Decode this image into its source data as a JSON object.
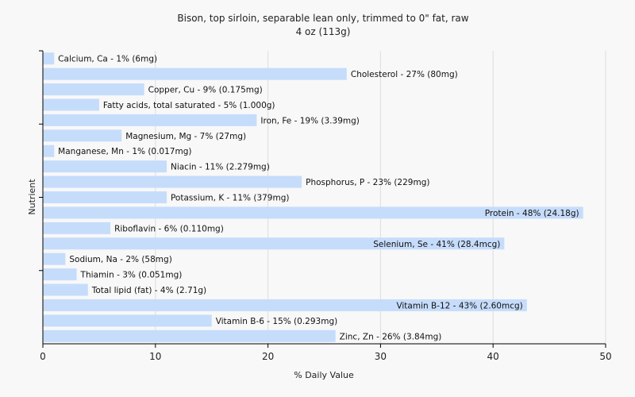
{
  "chart_data": {
    "type": "bar",
    "orientation": "horizontal",
    "title": "Bison, top sirloin, separable lean only, trimmed to 0\" fat, raw",
    "subtitle": "4 oz (113g)",
    "xlabel": "% Daily Value",
    "ylabel": "Nutrient",
    "xlim": [
      0,
      50
    ],
    "xticks": [
      "0",
      "10",
      "20",
      "30",
      "40",
      "50"
    ],
    "grid": true,
    "bar_color": "#c6dcfb",
    "categories": [
      "Calcium, Ca",
      "Cholesterol",
      "Copper, Cu",
      "Fatty acids, total saturated",
      "Iron, Fe",
      "Magnesium, Mg",
      "Manganese, Mn",
      "Niacin",
      "Phosphorus, P",
      "Potassium, K",
      "Protein",
      "Riboflavin",
      "Selenium, Se",
      "Sodium, Na",
      "Thiamin",
      "Total lipid (fat)",
      "Vitamin B-12",
      "Vitamin B-6",
      "Zinc, Zn"
    ],
    "values": [
      1,
      27,
      9,
      5,
      19,
      7,
      1,
      11,
      23,
      11,
      48,
      6,
      41,
      2,
      3,
      4,
      43,
      15,
      26
    ],
    "labels": [
      "Calcium, Ca - 1% (6mg)",
      "Cholesterol - 27% (80mg)",
      "Copper, Cu - 9% (0.175mg)",
      "Fatty acids, total saturated - 5% (1.000g)",
      "Iron, Fe - 19% (3.39mg)",
      "Magnesium, Mg - 7% (27mg)",
      "Manganese, Mn - 1% (0.017mg)",
      "Niacin - 11% (2.279mg)",
      "Phosphorus, P - 23% (229mg)",
      "Potassium, K - 11% (379mg)",
      "Protein - 48% (24.18g)",
      "Riboflavin - 6% (0.110mg)",
      "Selenium, Se - 41% (28.4mcg)",
      "Sodium, Na - 2% (58mg)",
      "Thiamin - 3% (0.051mg)",
      "Total lipid (fat) - 4% (2.71g)",
      "Vitamin B-12 - 43% (2.60mcg)",
      "Vitamin B-6 - 15% (0.293mg)",
      "Zinc, Zn - 26% (3.84mg)"
    ]
  }
}
